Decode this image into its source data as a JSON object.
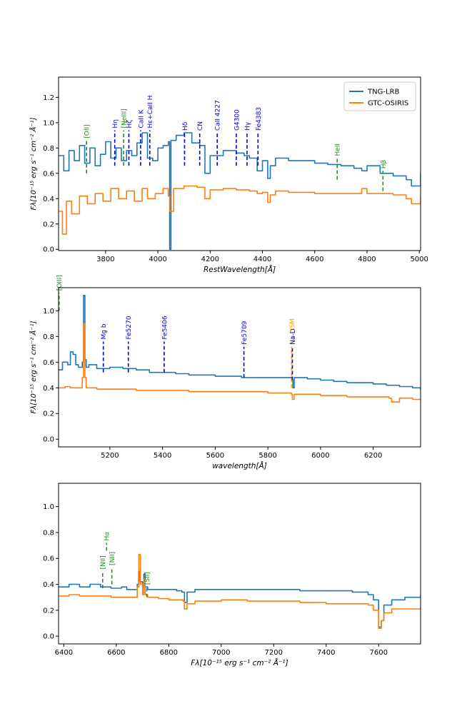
{
  "chart_data": [
    {
      "type": "line",
      "xlabel": "RestWavelength[Å]",
      "ylabel": "Fλ[10⁻¹⁵ erg s⁻¹ cm⁻² Å⁻¹]",
      "xlim": [
        3620,
        5005
      ],
      "ylim": [
        -0.01,
        1.36
      ],
      "xticks": [
        3800,
        4000,
        4200,
        4400,
        4600,
        4800,
        5000
      ],
      "yticks": [
        0.0,
        0.2,
        0.4,
        0.6,
        0.8,
        1.0,
        1.2
      ],
      "legend": {
        "position": "top-right",
        "entries": [
          "TNG-LRB",
          "GTC-OSIRIS"
        ]
      },
      "series": [
        {
          "name": "TNG-LRB",
          "color": "#1f77b4",
          "x": [
            3620,
            3640,
            3660,
            3680,
            3700,
            3720,
            3740,
            3760,
            3780,
            3800,
            3820,
            3840,
            3860,
            3880,
            3900,
            3920,
            3940,
            3960,
            3980,
            4000,
            4020,
            4040,
            4045,
            4050,
            4070,
            4100,
            4130,
            4160,
            4180,
            4200,
            4250,
            4300,
            4330,
            4350,
            4380,
            4400,
            4420,
            4430,
            4450,
            4500,
            4550,
            4600,
            4650,
            4700,
            4750,
            4780,
            4800,
            4850,
            4900,
            4950,
            4970,
            5005
          ],
          "y": [
            0.74,
            0.62,
            0.78,
            0.7,
            0.82,
            0.68,
            0.8,
            0.66,
            0.75,
            0.85,
            0.72,
            0.8,
            0.7,
            0.78,
            0.74,
            0.84,
            0.92,
            0.72,
            0.7,
            0.8,
            0.82,
            0.85,
            0.0,
            0.86,
            0.9,
            0.92,
            0.84,
            0.82,
            0.6,
            0.74,
            0.78,
            0.76,
            0.74,
            0.72,
            0.62,
            0.7,
            0.56,
            0.66,
            0.72,
            0.7,
            0.7,
            0.68,
            0.67,
            0.66,
            0.64,
            0.62,
            0.66,
            0.6,
            0.58,
            0.55,
            0.5,
            0.6
          ]
        },
        {
          "name": "GTC-OSIRIS",
          "color": "#ff7f0e",
          "x": [
            3620,
            3635,
            3650,
            3670,
            3700,
            3730,
            3760,
            3790,
            3820,
            3850,
            3880,
            3910,
            3940,
            3960,
            3990,
            4020,
            4040,
            4046,
            4060,
            4100,
            4150,
            4180,
            4200,
            4250,
            4300,
            4350,
            4380,
            4400,
            4420,
            4430,
            4450,
            4500,
            4600,
            4700,
            4780,
            4800,
            4850,
            4900,
            4950,
            4970,
            5005
          ],
          "y": [
            0.3,
            0.12,
            0.38,
            0.28,
            0.42,
            0.36,
            0.44,
            0.38,
            0.48,
            0.4,
            0.46,
            0.38,
            0.48,
            0.4,
            0.44,
            0.48,
            0.42,
            0.3,
            0.48,
            0.5,
            0.49,
            0.4,
            0.47,
            0.48,
            0.47,
            0.46,
            0.44,
            0.45,
            0.37,
            0.43,
            0.46,
            0.45,
            0.44,
            0.44,
            0.48,
            0.44,
            0.44,
            0.43,
            0.4,
            0.36,
            0.41
          ]
        }
      ],
      "annotations": [
        {
          "label": "[OII]",
          "x": 3727,
          "y_bottom": 0.6,
          "y_top": 0.86,
          "color": "green"
        },
        {
          "label": "Hη",
          "x": 3835,
          "y_bottom": 0.66,
          "y_top": 0.94,
          "color": "blue"
        },
        {
          "label": "[NeIII]",
          "x": 3869,
          "y_bottom": 0.66,
          "y_top": 0.94,
          "color": "green"
        },
        {
          "label": "Hζ",
          "x": 3889,
          "y_bottom": 0.66,
          "y_top": 0.94,
          "color": "blue"
        },
        {
          "label": "CaII K",
          "x": 3934,
          "y_bottom": 0.66,
          "y_top": 0.94,
          "color": "blue"
        },
        {
          "label": "Hε+CaII H",
          "x": 3969,
          "y_bottom": 0.66,
          "y_top": 0.94,
          "color": "blue"
        },
        {
          "label": "Hδ",
          "x": 4102,
          "y_bottom": 0.66,
          "y_top": 0.92,
          "color": "blue"
        },
        {
          "label": "CN",
          "x": 4160,
          "y_bottom": 0.66,
          "y_top": 0.92,
          "color": "blue"
        },
        {
          "label": "CaII 4227",
          "x": 4227,
          "y_bottom": 0.66,
          "y_top": 0.92,
          "color": "blue"
        },
        {
          "label": "G4300",
          "x": 4300,
          "y_bottom": 0.66,
          "y_top": 0.92,
          "color": "blue"
        },
        {
          "label": "Hγ",
          "x": 4341,
          "y_bottom": 0.66,
          "y_top": 0.92,
          "color": "blue"
        },
        {
          "label": "Fe4383",
          "x": 4383,
          "y_bottom": 0.66,
          "y_top": 0.92,
          "color": "blue"
        },
        {
          "label": "HeII",
          "x": 4686,
          "y_bottom": 0.55,
          "y_top": 0.72,
          "color": "green"
        },
        {
          "label": "Hβ",
          "x": 4861,
          "y_bottom": 0.46,
          "y_top": 0.62,
          "color": "green"
        }
      ]
    },
    {
      "type": "line",
      "xlabel": "wavelength[Å]",
      "ylabel": "Fλ[10⁻¹⁵ erg s⁻¹ cm⁻² Å⁻¹]",
      "xlim": [
        5005,
        6380
      ],
      "ylim": [
        -0.06,
        1.18
      ],
      "xticks": [
        5200,
        5400,
        5600,
        5800,
        6000,
        6200
      ],
      "yticks": [
        0.0,
        0.2,
        0.4,
        0.6,
        0.8,
        1.0
      ],
      "series": [
        {
          "name": "TNG-LRB",
          "color": "#1f77b4",
          "x": [
            5005,
            5020,
            5040,
            5050,
            5060,
            5070,
            5080,
            5095,
            5100,
            5105,
            5110,
            5120,
            5150,
            5200,
            5250,
            5300,
            5350,
            5400,
            5450,
            5500,
            5550,
            5600,
            5650,
            5700,
            5750,
            5800,
            5850,
            5890,
            5895,
            5900,
            5950,
            6000,
            6050,
            6100,
            6150,
            6200,
            6250,
            6300,
            6350,
            6380
          ],
          "y": [
            0.54,
            0.6,
            0.58,
            0.68,
            0.66,
            0.58,
            0.56,
            0.6,
            1.12,
            0.62,
            0.56,
            0.58,
            0.55,
            0.56,
            0.55,
            0.54,
            0.52,
            0.52,
            0.51,
            0.5,
            0.5,
            0.49,
            0.49,
            0.48,
            0.48,
            0.48,
            0.48,
            0.46,
            0.4,
            0.48,
            0.47,
            0.46,
            0.45,
            0.44,
            0.44,
            0.43,
            0.42,
            0.41,
            0.4,
            0.38
          ]
        },
        {
          "name": "GTC-OSIRIS",
          "color": "#ff7f0e",
          "x": [
            5005,
            5030,
            5050,
            5060,
            5070,
            5090,
            5095,
            5100,
            5105,
            5110,
            5150,
            5200,
            5300,
            5400,
            5500,
            5600,
            5700,
            5800,
            5850,
            5890,
            5893,
            5900,
            5950,
            6000,
            6050,
            6100,
            6150,
            6200,
            6260,
            6270,
            6300,
            6350,
            6380
          ],
          "y": [
            0.4,
            0.41,
            0.4,
            0.4,
            0.4,
            0.4,
            0.48,
            0.9,
            0.48,
            0.4,
            0.39,
            0.39,
            0.38,
            0.38,
            0.37,
            0.37,
            0.37,
            0.36,
            0.36,
            0.35,
            0.31,
            0.35,
            0.35,
            0.34,
            0.34,
            0.33,
            0.33,
            0.33,
            0.32,
            0.29,
            0.32,
            0.31,
            0.31
          ]
        }
      ],
      "annotations": [
        {
          "label": "[OIII]",
          "x": 5007,
          "y_bottom": 1.0,
          "y_top": 1.14,
          "color": "green"
        },
        {
          "label": "Mg b",
          "x": 5175,
          "y_bottom": 0.52,
          "y_top": 0.76,
          "color": "blue"
        },
        {
          "label": "Fe5270",
          "x": 5270,
          "y_bottom": 0.52,
          "y_top": 0.76,
          "color": "blue"
        },
        {
          "label": "Fe5406",
          "x": 5406,
          "y_bottom": 0.52,
          "y_top": 0.76,
          "color": "blue"
        },
        {
          "label": "Fe5709",
          "x": 5709,
          "y_bottom": 0.48,
          "y_top": 0.72,
          "color": "blue"
        },
        {
          "label": "Na I ISM",
          "x": 5890,
          "y_bottom": 0.4,
          "y_top": 0.72,
          "color": "orange"
        },
        {
          "label": "Na-D",
          "x": 5893,
          "y_bottom": 0.46,
          "y_top": 0.72,
          "color": "blue"
        }
      ]
    },
    {
      "type": "line",
      "xlabel": "Fλ[10⁻¹⁵ erg s⁻¹ cm⁻² Å⁻¹]",
      "ylabel": "",
      "xlim": [
        6380,
        7760
      ],
      "ylim": [
        -0.06,
        1.18
      ],
      "xticks": [
        6400,
        6600,
        6800,
        7000,
        7200,
        7400,
        7600
      ],
      "yticks": [
        0.0,
        0.2,
        0.4,
        0.6,
        0.8,
        1.0
      ],
      "series": [
        {
          "name": "TNG-LRB",
          "color": "#1f77b4",
          "x": [
            6380,
            6420,
            6460,
            6500,
            6540,
            6580,
            6620,
            6640,
            6660,
            6680,
            6685,
            6690,
            6700,
            6705,
            6710,
            6720,
            6760,
            6800,
            6830,
            6850,
            6860,
            6870,
            6900,
            7000,
            7100,
            7200,
            7300,
            7400,
            7500,
            7560,
            7580,
            7600,
            7610,
            7620,
            7650,
            7700,
            7760
          ],
          "y": [
            0.38,
            0.4,
            0.38,
            0.4,
            0.38,
            0.37,
            0.38,
            0.36,
            0.36,
            0.4,
            0.5,
            0.42,
            0.38,
            0.48,
            0.38,
            0.36,
            0.36,
            0.36,
            0.35,
            0.34,
            0.26,
            0.34,
            0.36,
            0.36,
            0.36,
            0.36,
            0.35,
            0.35,
            0.34,
            0.32,
            0.28,
            0.07,
            0.12,
            0.24,
            0.28,
            0.3,
            0.32
          ]
        },
        {
          "name": "GTC-OSIRIS",
          "color": "#ff7f0e",
          "x": [
            6380,
            6420,
            6460,
            6500,
            6540,
            6580,
            6620,
            6660,
            6680,
            6686,
            6692,
            6700,
            6705,
            6710,
            6720,
            6760,
            6800,
            6840,
            6855,
            6860,
            6870,
            6900,
            7000,
            7100,
            7200,
            7300,
            7400,
            7500,
            7560,
            7580,
            7600,
            7610,
            7620,
            7650,
            7700,
            7760
          ],
          "y": [
            0.31,
            0.32,
            0.31,
            0.31,
            0.31,
            0.3,
            0.3,
            0.3,
            0.38,
            0.63,
            0.4,
            0.32,
            0.44,
            0.32,
            0.3,
            0.29,
            0.28,
            0.28,
            0.27,
            0.21,
            0.25,
            0.27,
            0.28,
            0.27,
            0.27,
            0.26,
            0.25,
            0.25,
            0.24,
            0.2,
            0.06,
            0.12,
            0.18,
            0.21,
            0.21,
            0.22
          ]
        }
      ],
      "annotations": [
        {
          "label": "[NII]",
          "x": 6548,
          "y_bottom": 0.37,
          "y_top": 0.5,
          "color": "green"
        },
        {
          "label": "Hα",
          "x": 6563,
          "y_bottom": 0.66,
          "y_top": 0.72,
          "color": "green"
        },
        {
          "label": "[NII]",
          "x": 6583,
          "y_bottom": 0.4,
          "y_top": 0.53,
          "color": "green"
        },
        {
          "label": "[SII]",
          "x": 6716,
          "y_bottom": 0.3,
          "y_top": 0.38,
          "color": "green"
        }
      ]
    }
  ]
}
